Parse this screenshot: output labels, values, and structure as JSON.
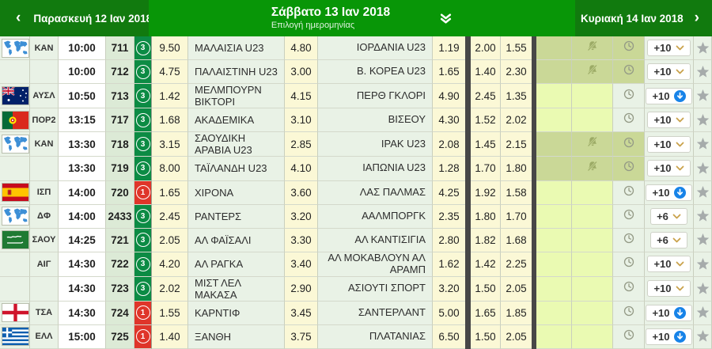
{
  "header": {
    "prev_day": "Παρασκευή 12 Ιαν 2018",
    "selected_day": "Σάββατο 13 Ιαν 2018",
    "selected_day_hint": "Επιλογή ημερομηνίας",
    "next_day": "Κυριακή 14 Ιαν 2018"
  },
  "colors": {
    "header_green": "#089607",
    "header_dark_green": "#117a0e",
    "market_green": "#0c8b44",
    "market_red": "#df352a",
    "odds_bg": "#fbf8d6",
    "row_bg": "#e9f2e6",
    "olive_bg": "#cad897",
    "lime_bg": "#eafab2",
    "accent_blue": "#1783e8",
    "star_gray": "#a6abab"
  },
  "table": {
    "rows": [
      {
        "flag": "world-map",
        "league": "ΚΑΝ",
        "time": "10:00",
        "code": "711",
        "markets": "3",
        "markets_color": "green",
        "odds_1": "9.50",
        "home_team": "ΜΑΛΑΙΣΙΑ U23",
        "odds_x": "4.80",
        "away_team": "ΙΟΡΔΑΝΙΑ U23",
        "odds_2": "1.19",
        "odds_over": "2.00",
        "odds_under": "1.55",
        "highlight": "olive",
        "stream_off": true,
        "more_label": "+10",
        "more_icon": "chevron"
      },
      {
        "flag": "none",
        "league": "",
        "time": "10:00",
        "code": "712",
        "markets": "3",
        "markets_color": "green",
        "odds_1": "4.75",
        "home_team": "ΠΑΛΑΙΣΤΙΝΗ U23",
        "odds_x": "3.00",
        "away_team": "Β. ΚΟΡΕΑ U23",
        "odds_2": "1.65",
        "odds_over": "1.40",
        "odds_under": "2.30",
        "highlight": "olive",
        "stream_off": true,
        "more_label": "+10",
        "more_icon": "chevron"
      },
      {
        "flag": "australia",
        "league": "ΑΥΣΛ",
        "time": "10:50",
        "code": "713",
        "markets": "3",
        "markets_color": "green",
        "odds_1": "1.42",
        "home_team": "ΜΕΛΜΠΟΥΡΝ ΒΙΚΤΟΡΙ",
        "odds_x": "4.15",
        "away_team": "ΠΕΡΘ ΓΚΛΟΡΙ",
        "odds_2": "4.90",
        "odds_over": "2.45",
        "odds_under": "1.35",
        "highlight": "lime",
        "stream_off": false,
        "more_label": "+10",
        "more_icon": "blue-arrow"
      },
      {
        "flag": "portugal",
        "league": "ΠΟΡ2",
        "time": "13:15",
        "code": "717",
        "markets": "3",
        "markets_color": "green",
        "odds_1": "1.68",
        "home_team": "ΑΚΑΔΕΜΙΚΑ",
        "odds_x": "3.10",
        "away_team": "ΒΙΣΕΟΥ",
        "odds_2": "4.30",
        "odds_over": "1.52",
        "odds_under": "2.02",
        "highlight": "lime",
        "stream_off": false,
        "more_label": "+10",
        "more_icon": "chevron"
      },
      {
        "flag": "world-map",
        "league": "ΚΑΝ",
        "time": "13:30",
        "code": "718",
        "markets": "3",
        "markets_color": "green",
        "odds_1": "3.15",
        "home_team": "ΣΑΟΥΔΙΚΗ ΑΡΑΒΙΑ U23",
        "odds_x": "2.85",
        "away_team": "ΙΡΑΚ U23",
        "odds_2": "2.08",
        "odds_over": "1.45",
        "odds_under": "2.15",
        "highlight": "olive",
        "stream_off": true,
        "more_label": "+10",
        "more_icon": "chevron"
      },
      {
        "flag": "none",
        "league": "",
        "time": "13:30",
        "code": "719",
        "markets": "3",
        "markets_color": "green",
        "odds_1": "8.00",
        "home_team": "ΤΑΪΛΑΝΔΗ U23",
        "odds_x": "4.10",
        "away_team": "ΙΑΠΩΝΙΑ U23",
        "odds_2": "1.28",
        "odds_over": "1.70",
        "odds_under": "1.80",
        "highlight": "olive",
        "stream_off": true,
        "more_label": "+10",
        "more_icon": "chevron"
      },
      {
        "flag": "spain",
        "league": "ΙΣΠ",
        "time": "14:00",
        "code": "720",
        "markets": "1",
        "markets_color": "red",
        "odds_1": "1.65",
        "home_team": "ΧΙΡΟΝΑ",
        "odds_x": "3.60",
        "away_team": "ΛΑΣ ΠΑΛΜΑΣ",
        "odds_2": "4.25",
        "odds_over": "1.92",
        "odds_under": "1.58",
        "highlight": "lime",
        "stream_off": false,
        "more_label": "+10",
        "more_icon": "blue-arrow"
      },
      {
        "flag": "world-map",
        "league": "ΔΦ",
        "time": "14:00",
        "code": "2433",
        "markets": "3",
        "markets_color": "green",
        "odds_1": "2.45",
        "home_team": "ΡΑΝΤΕΡΣ",
        "odds_x": "3.20",
        "away_team": "ΑΑΛΜΠΟΡΓΚ",
        "odds_2": "2.35",
        "odds_over": "1.80",
        "odds_under": "1.70",
        "highlight": "lime",
        "stream_off": false,
        "more_label": "+6",
        "more_icon": "chevron"
      },
      {
        "flag": "saudi-arabia",
        "league": "ΣΑΟΥ",
        "time": "14:25",
        "code": "721",
        "markets": "3",
        "markets_color": "green",
        "odds_1": "2.05",
        "home_team": "ΑΛ ΦΑΪΣΑΛΙ",
        "odds_x": "3.30",
        "away_team": "ΑΛ ΚΑΝΤΙΣΙΓΙΑ",
        "odds_2": "2.80",
        "odds_over": "1.82",
        "odds_under": "1.68",
        "highlight": "lime",
        "stream_off": false,
        "more_label": "+6",
        "more_icon": "chevron"
      },
      {
        "flag": "none",
        "league": "ΑΙΓ",
        "time": "14:30",
        "code": "722",
        "markets": "3",
        "markets_color": "green",
        "odds_1": "4.20",
        "home_team": "ΑΛ ΡΑΓΚΑ",
        "odds_x": "3.40",
        "away_team": "ΑΛ ΜΟΚΑΒΛΟΥΝ ΑΛ ΑΡΑΜΠ",
        "odds_2": "1.62",
        "odds_over": "1.42",
        "odds_under": "2.25",
        "highlight": "lime",
        "stream_off": false,
        "more_label": "+10",
        "more_icon": "chevron"
      },
      {
        "flag": "none",
        "league": "",
        "time": "14:30",
        "code": "723",
        "markets": "3",
        "markets_color": "green",
        "odds_1": "2.02",
        "home_team": "ΜΙΣΤ ΛΕΛ ΜΑΚΑΣΑ",
        "odds_x": "2.90",
        "away_team": "ΑΣΙΟΥΤΙ ΣΠΟΡΤ",
        "odds_2": "3.20",
        "odds_over": "1.50",
        "odds_under": "2.05",
        "highlight": "lime",
        "stream_off": false,
        "more_label": "+10",
        "more_icon": "chevron"
      },
      {
        "flag": "england",
        "league": "ΤΣΑ",
        "time": "14:30",
        "code": "724",
        "markets": "1",
        "markets_color": "red",
        "odds_1": "1.55",
        "home_team": "ΚΑΡΝΤΙΦ",
        "odds_x": "3.45",
        "away_team": "ΣΑΝΤΕΡΛΑΝΤ",
        "odds_2": "5.00",
        "odds_over": "1.65",
        "odds_under": "1.85",
        "highlight": "lime",
        "stream_off": false,
        "more_label": "+10",
        "more_icon": "blue-arrow"
      },
      {
        "flag": "greece",
        "league": "ΕΛΛ",
        "time": "15:00",
        "code": "725",
        "markets": "1",
        "markets_color": "red",
        "odds_1": "1.40",
        "home_team": "ΞΑΝΘΗ",
        "odds_x": "3.75",
        "away_team": "ΠΛΑΤΑΝΙΑΣ",
        "odds_2": "6.50",
        "odds_over": "1.50",
        "odds_under": "2.05",
        "highlight": "lime",
        "stream_off": false,
        "more_label": "+10",
        "more_icon": "blue-arrow"
      }
    ]
  }
}
